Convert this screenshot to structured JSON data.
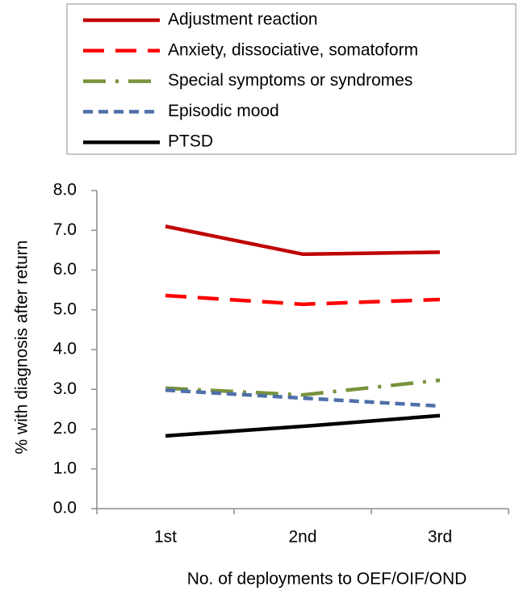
{
  "chart_data": {
    "type": "line",
    "y_label": "% with diagnosis after return",
    "x_label": "No. of deployments to OEF/OIF/OND",
    "categories": [
      "1st",
      "2nd",
      "3rd"
    ],
    "series": [
      {
        "name": "Adjustment reaction",
        "color": "#c00000",
        "dash": "solid",
        "values": [
          7.1,
          6.4,
          6.45
        ]
      },
      {
        "name": "Anxiety, dissociative, somatoform",
        "color": "#ff0000",
        "dash": "dash",
        "values": [
          5.36,
          5.14,
          5.26
        ]
      },
      {
        "name": "Special symptoms or syndromes",
        "color": "#77933c",
        "dash": "dashdot",
        "values": [
          3.03,
          2.86,
          3.23
        ]
      },
      {
        "name": "Episodic mood",
        "color": "#4f6fa8",
        "dash": "shortdash",
        "values": [
          2.98,
          2.78,
          2.58
        ]
      },
      {
        "name": "PTSD",
        "color": "#000000",
        "dash": "solid",
        "values": [
          1.83,
          2.07,
          2.34
        ]
      }
    ],
    "ylim": [
      0,
      8
    ],
    "yticks": [
      {
        "value": 0,
        "label": "0.0"
      },
      {
        "value": 1,
        "label": "1.0"
      },
      {
        "value": 2,
        "label": "2.0"
      },
      {
        "value": 3,
        "label": "3.0"
      },
      {
        "value": 4,
        "label": "4.0"
      },
      {
        "value": 5,
        "label": "5.0"
      },
      {
        "value": 6,
        "label": "6.0"
      },
      {
        "value": 7,
        "label": "7.0"
      },
      {
        "value": 8,
        "label": "8.0"
      }
    ],
    "grid": false,
    "legend": "top"
  }
}
